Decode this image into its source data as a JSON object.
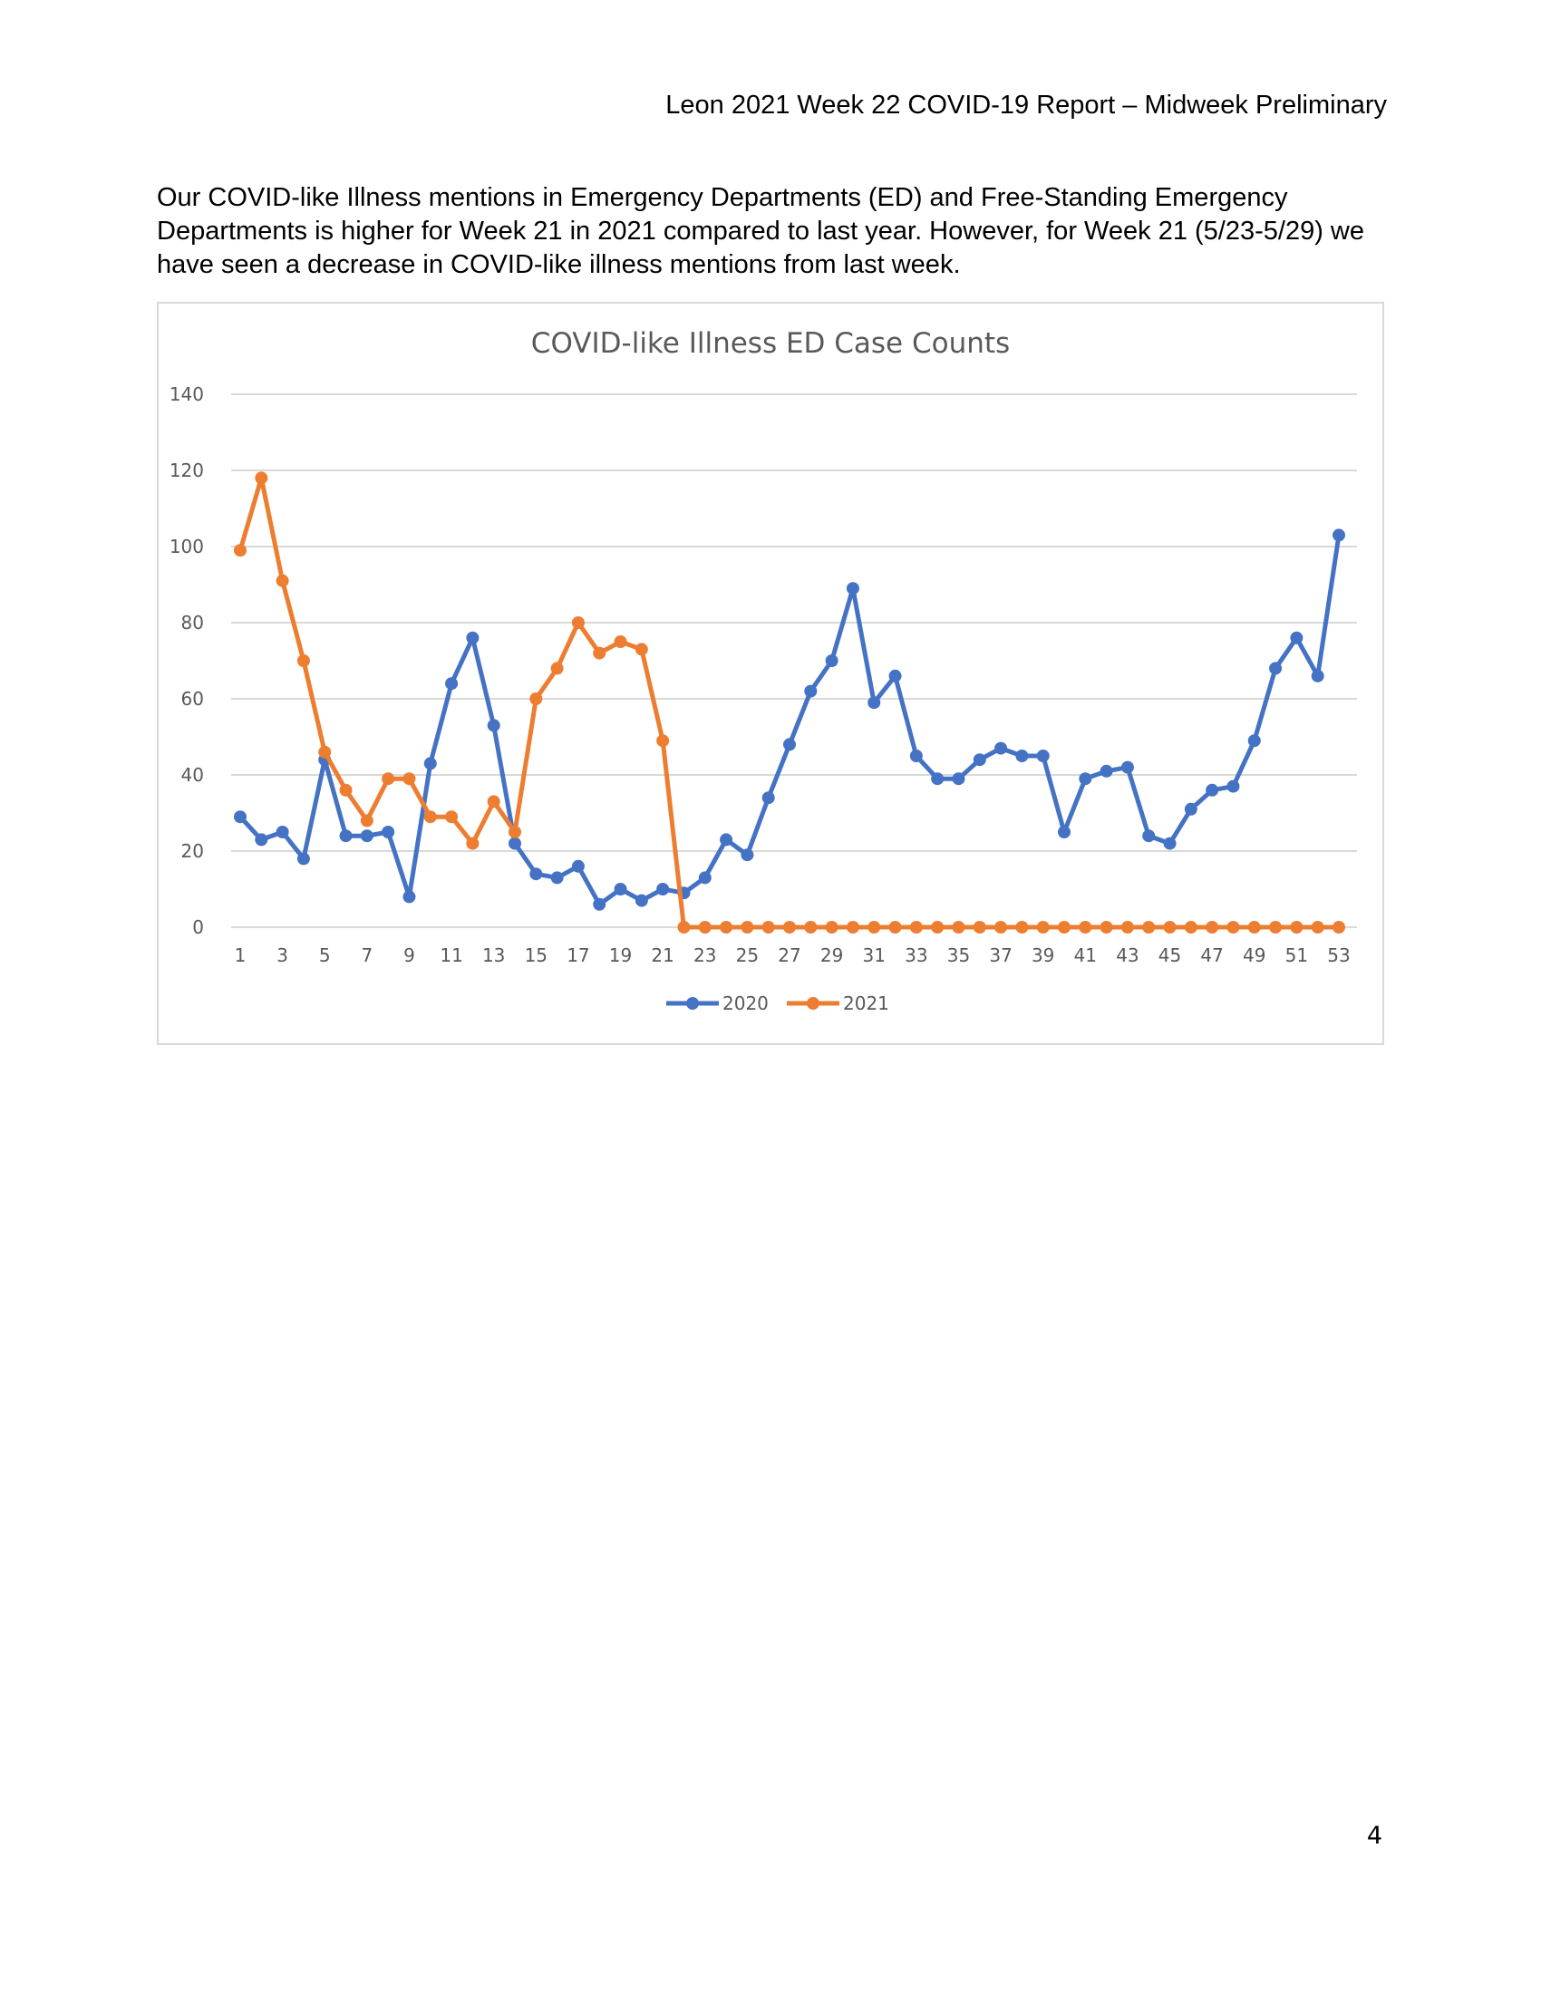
{
  "header": {
    "title": "Leon 2021 Week 22 COVID-19 Report – Midweek Preliminary"
  },
  "body": {
    "paragraph": "Our COVID-like Illness mentions in Emergency Departments (ED) and Free-Standing Emergency Departments is higher for Week 21 in 2021 compared to last year. However, for Week 21 (5/23-5/29) we have seen a decrease in COVID-like illness mentions from last week."
  },
  "chart_data": {
    "type": "line",
    "title": "COVID-like Illness ED Case Counts",
    "xlabel": "",
    "ylabel": "",
    "x": [
      1,
      2,
      3,
      4,
      5,
      6,
      7,
      8,
      9,
      10,
      11,
      12,
      13,
      14,
      15,
      16,
      17,
      18,
      19,
      20,
      21,
      22,
      23,
      24,
      25,
      26,
      27,
      28,
      29,
      30,
      31,
      32,
      33,
      34,
      35,
      36,
      37,
      38,
      39,
      40,
      41,
      42,
      43,
      44,
      45,
      46,
      47,
      48,
      49,
      50,
      51,
      52,
      53
    ],
    "x_tick_labels": [
      "1",
      "3",
      "5",
      "7",
      "9",
      "11",
      "13",
      "15",
      "17",
      "19",
      "21",
      "23",
      "25",
      "27",
      "29",
      "31",
      "33",
      "35",
      "37",
      "39",
      "41",
      "43",
      "45",
      "47",
      "49",
      "51",
      "53"
    ],
    "ylim": [
      0,
      140
    ],
    "y_ticks": [
      0,
      20,
      40,
      60,
      80,
      100,
      120,
      140
    ],
    "grid": true,
    "legend_position": "bottom",
    "series": [
      {
        "name": "2020",
        "color": "#4472c4",
        "values": [
          29,
          23,
          25,
          18,
          44,
          24,
          24,
          25,
          8,
          43,
          64,
          76,
          53,
          22,
          14,
          13,
          16,
          6,
          10,
          7,
          10,
          9,
          13,
          23,
          19,
          34,
          48,
          62,
          70,
          89,
          59,
          66,
          45,
          39,
          39,
          44,
          47,
          45,
          45,
          25,
          39,
          41,
          42,
          24,
          22,
          31,
          36,
          37,
          49,
          68,
          76,
          66,
          103
        ]
      },
      {
        "name": "2021",
        "color": "#ed7d31",
        "values": [
          99,
          118,
          91,
          70,
          46,
          36,
          28,
          39,
          39,
          29,
          29,
          22,
          33,
          25,
          60,
          68,
          80,
          72,
          75,
          73,
          49,
          0,
          0,
          0,
          0,
          0,
          0,
          0,
          0,
          0,
          0,
          0,
          0,
          0,
          0,
          0,
          0,
          0,
          0,
          0,
          0,
          0,
          0,
          0,
          0,
          0,
          0,
          0,
          0,
          0,
          0,
          0,
          0
        ]
      }
    ]
  },
  "footer": {
    "page_number": "4"
  }
}
